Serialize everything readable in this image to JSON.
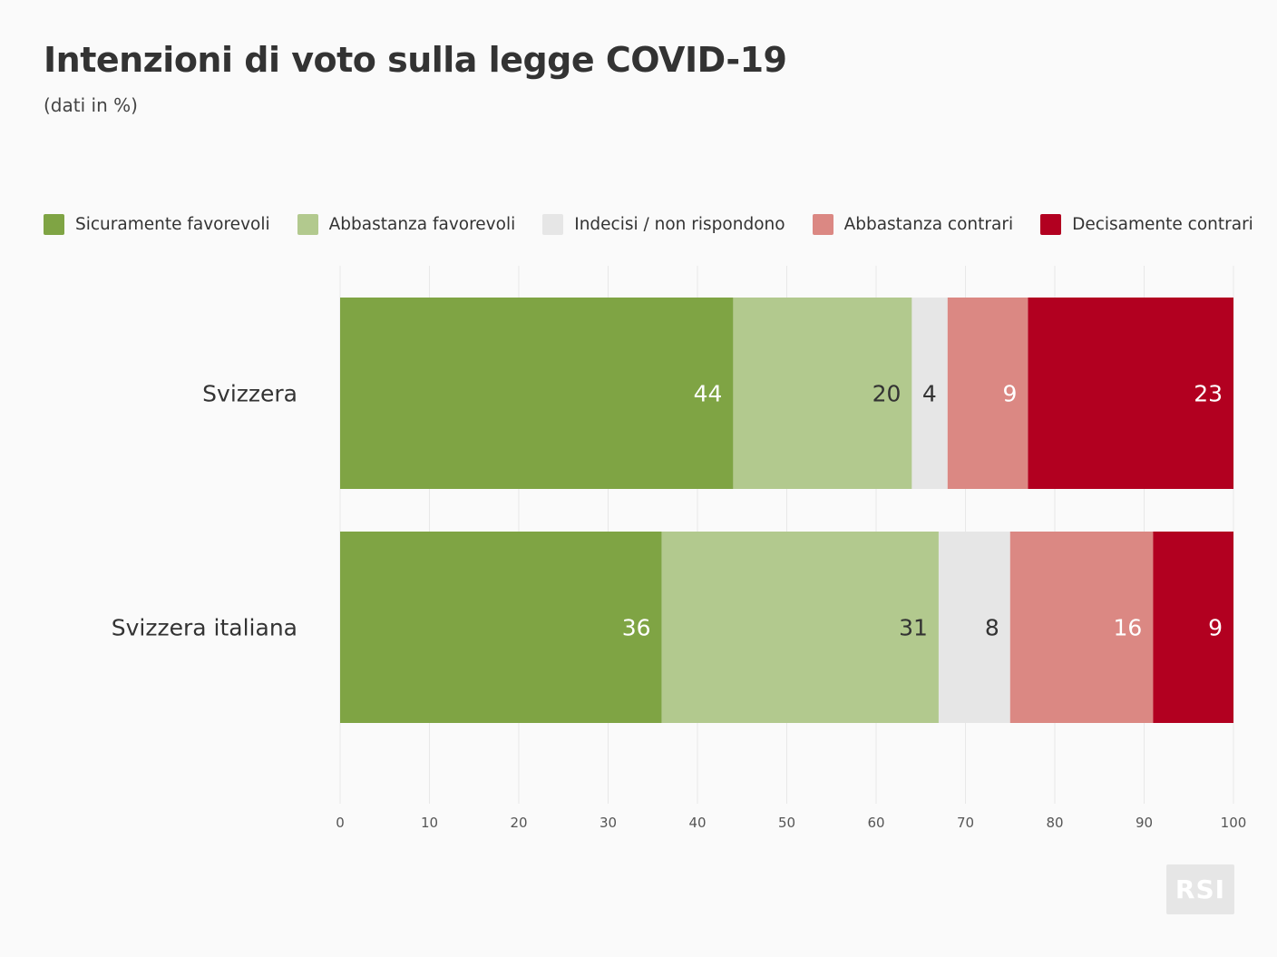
{
  "chart_data": {
    "type": "bar",
    "orientation": "horizontal",
    "stacked": true,
    "title": "Intenzioni di voto sulla legge COVID-19",
    "subtitle": "(dati in %)",
    "categories": [
      "Svizzera",
      "Svizzera italiana"
    ],
    "series": [
      {
        "name": "Sicuramente favorevoli",
        "color": "#7fa444",
        "label_color": "#ffffff",
        "values": [
          44,
          36
        ]
      },
      {
        "name": "Abbastanza favorevoli",
        "color": "#b2c98e",
        "label_color": "#333333",
        "values": [
          20,
          31
        ]
      },
      {
        "name": "Indecisi / non rispondono",
        "color": "#e6e6e6",
        "label_color": "#333333",
        "values": [
          4,
          8
        ]
      },
      {
        "name": "Abbastanza contrari",
        "color": "#db8883",
        "label_color": "#ffffff",
        "values": [
          9,
          16
        ]
      },
      {
        "name": "Decisamente contrari",
        "color": "#b20020",
        "label_color": "#ffffff",
        "values": [
          23,
          9
        ]
      }
    ],
    "xlim": [
      0,
      100
    ],
    "xticks": [
      0,
      10,
      20,
      30,
      40,
      50,
      60,
      70,
      80,
      90,
      100
    ],
    "grid": true,
    "legend_position": "top"
  },
  "logo": "RSI"
}
